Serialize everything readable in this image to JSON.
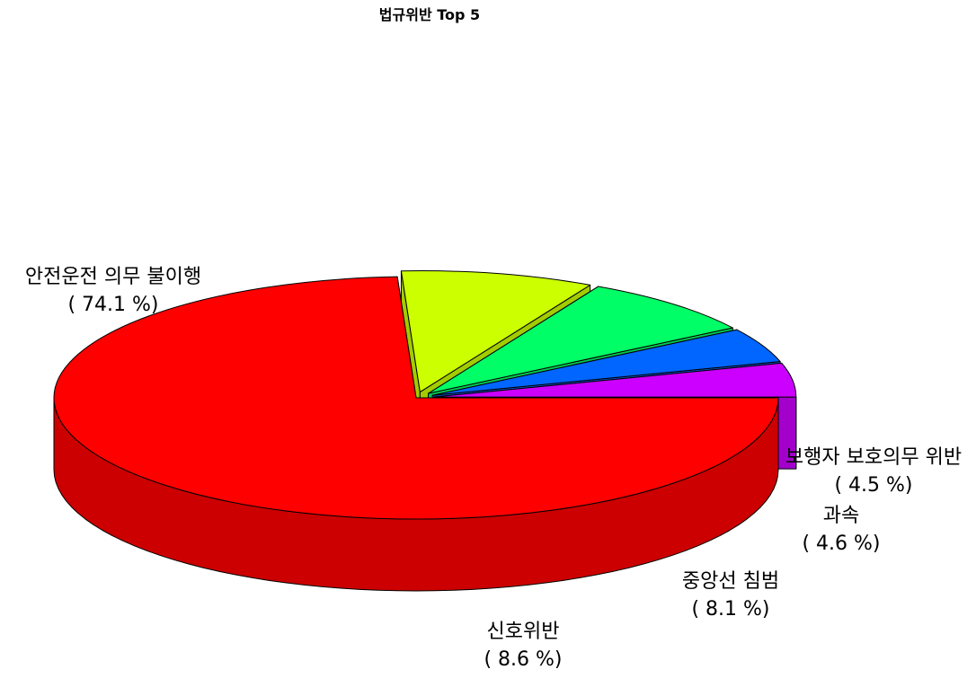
{
  "chart_data": {
    "type": "pie",
    "title": "법규위반 Top 5",
    "categories": [
      "안전운전 의무 불이행",
      "신호위반",
      "중앙선 침범",
      "과속",
      "보행자 보호의무 위반"
    ],
    "values": [
      74.1,
      8.6,
      8.1,
      4.6,
      4.5
    ],
    "value_labels": [
      "( 74.1 %)",
      "( 8.6 %)",
      "( 8.1 %)",
      "( 4.6 %)",
      "( 4.5 %)"
    ],
    "colors": [
      "#ff0000",
      "#ccff00",
      "#00ff66",
      "#0066ff",
      "#cc00ff"
    ],
    "side_colors": [
      "#cc0000",
      "#a3cc00",
      "#00cc52",
      "#0052cc",
      "#a300cc"
    ],
    "style": "3d-exploded"
  }
}
